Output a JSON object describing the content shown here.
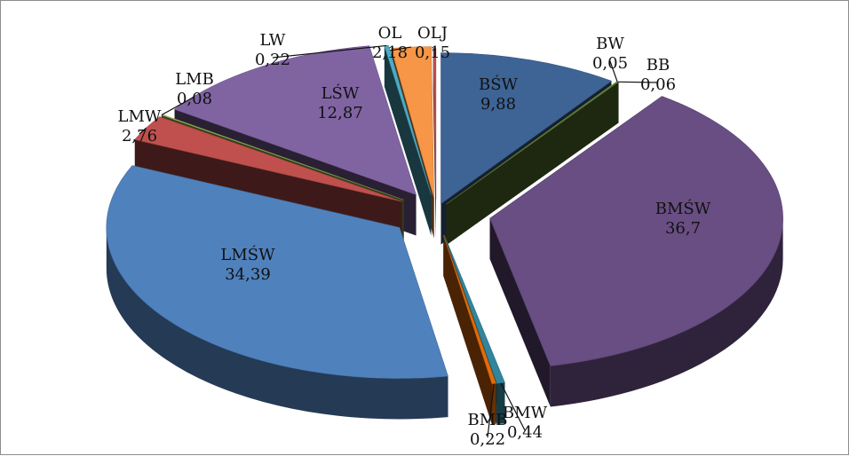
{
  "chart_data": {
    "type": "pie",
    "style": "3d-exploded",
    "title": "",
    "legend": "none",
    "slices": [
      {
        "name": "BŚW",
        "value": 9.88,
        "value_label": "9,88",
        "color": "#3e6496",
        "label_placement": "inside"
      },
      {
        "name": "BW",
        "value": 0.05,
        "value_label": "0,05",
        "color": "#9bbb59",
        "label_placement": "outside"
      },
      {
        "name": "BB",
        "value": 0.06,
        "value_label": "0,06",
        "color": "#5d7b32",
        "label_placement": "outside"
      },
      {
        "name": "BMŚW",
        "value": 36.7,
        "value_label": "36,7",
        "color": "#684e82",
        "label_placement": "inside"
      },
      {
        "name": "BMW",
        "value": 0.44,
        "value_label": "0,44",
        "color": "#31859c",
        "label_placement": "outside"
      },
      {
        "name": "BMB",
        "value": 0.22,
        "value_label": "0,22",
        "color": "#e46c0a",
        "label_placement": "outside"
      },
      {
        "name": "LMŚW",
        "value": 34.39,
        "value_label": "34,39",
        "color": "#4f81bd",
        "label_placement": "inside"
      },
      {
        "name": "LMW",
        "value": 2.76,
        "value_label": "2,76",
        "color": "#c0504d",
        "label_placement": "outside"
      },
      {
        "name": "LMB",
        "value": 0.08,
        "value_label": "0,08",
        "color": "#9bbb59",
        "label_placement": "outside"
      },
      {
        "name": "LŚW",
        "value": 12.87,
        "value_label": "12,87",
        "color": "#8064a2",
        "label_placement": "inside"
      },
      {
        "name": "LW",
        "value": 0.22,
        "value_label": "0,22",
        "color": "#4bacc6",
        "label_placement": "outside"
      },
      {
        "name": "OL",
        "value": 2.18,
        "value_label": "2,18",
        "color": "#f79646",
        "label_placement": "outside"
      },
      {
        "name": "OLJ",
        "value": 0.15,
        "value_label": "0,15",
        "color": "#c0504d",
        "label_placement": "outside"
      }
    ]
  }
}
